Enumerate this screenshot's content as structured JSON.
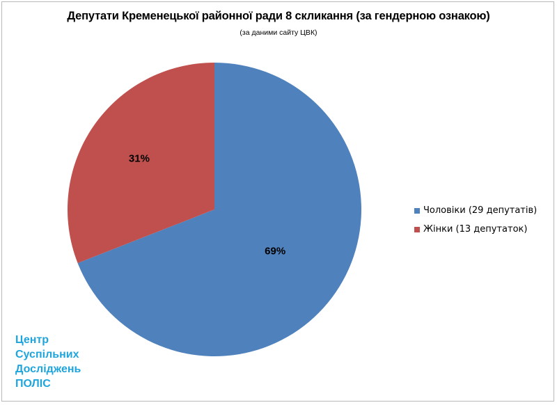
{
  "chart_data": {
    "type": "pie",
    "title": "Депутати Кременецької районної ради 8 скликання (за гендерною ознакою)",
    "subtitle": "(за даними сайту ЦВК)",
    "categories": [
      "Чоловіки (29 депутатів)",
      "Жінки (13 депутаток)"
    ],
    "values": [
      29,
      13
    ],
    "percent_labels": [
      "69%",
      "31%"
    ],
    "colors": [
      "#4f81bd",
      "#c0504d"
    ],
    "legend_position": "right"
  },
  "watermark": {
    "lines": [
      "Центр",
      "Суспільних",
      "Досліджень",
      "ПОЛІС"
    ],
    "color": "#1fa5dc"
  }
}
